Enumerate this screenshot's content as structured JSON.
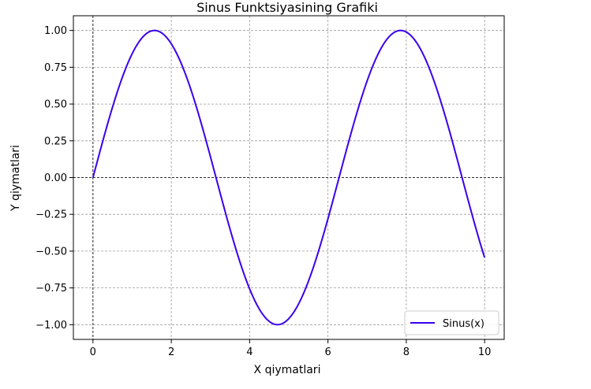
{
  "chart_data": {
    "type": "line",
    "title": "Sinus Funktsiyasining Grafiki",
    "xlabel": "X qiymatlari",
    "ylabel": "Y qiymatlari",
    "xlim": [
      -0.5,
      10.5
    ],
    "ylim": [
      -1.1,
      1.1
    ],
    "xticks": [
      0,
      2,
      4,
      6,
      8,
      10
    ],
    "xtick_labels": [
      "0",
      "2",
      "4",
      "6",
      "8",
      "10"
    ],
    "yticks": [
      1.0,
      0.75,
      0.5,
      0.25,
      0.0,
      -0.25,
      -0.5,
      -0.75,
      -1.0
    ],
    "ytick_labels": [
      "1.00",
      "0.75",
      "0.50",
      "0.25",
      "0.00",
      "−0.25",
      "−0.50",
      "−0.75",
      "−1.00"
    ],
    "grid": true,
    "reference_lines": {
      "y": 0,
      "x": 0
    },
    "legend_position": "lower-right",
    "series": [
      {
        "name": "Sinus(x)",
        "color": "#3b00ee",
        "function": "sin(x)",
        "x_range": [
          0,
          10
        ],
        "sample_x": [
          0,
          0.5,
          1,
          1.5708,
          2,
          2.5,
          3,
          3.1416,
          3.5,
          4,
          4.5,
          4.7124,
          5,
          5.5,
          6,
          6.2832,
          6.5,
          7,
          7.5,
          7.854,
          8,
          8.5,
          9,
          9.5,
          10
        ],
        "sample_y": [
          0.0,
          0.479,
          0.841,
          1.0,
          0.909,
          0.598,
          0.141,
          0.0,
          -0.351,
          -0.757,
          -0.978,
          -1.0,
          -0.959,
          -0.706,
          -0.279,
          0.0,
          0.215,
          0.657,
          0.938,
          1.0,
          0.989,
          0.798,
          0.412,
          -0.075,
          -0.544
        ]
      }
    ]
  }
}
